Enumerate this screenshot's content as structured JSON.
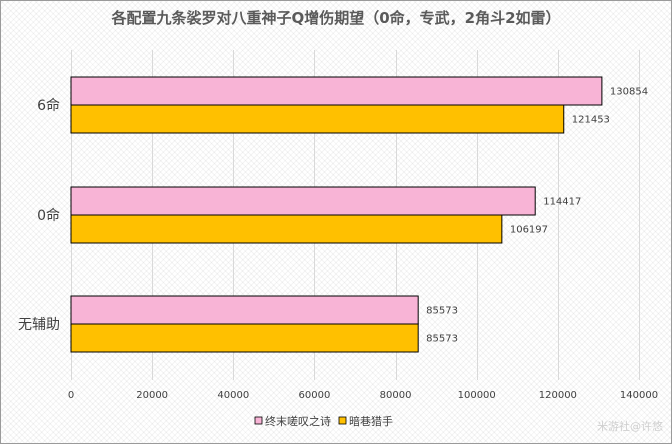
{
  "chart_data": {
    "type": "bar",
    "orientation": "horizontal",
    "title": "各配置九条裟罗对八重神子Q增伤期望（0命，专武，2角斗2如雷）",
    "categories": [
      "6命",
      "0命",
      "无辅助"
    ],
    "series": [
      {
        "name": "终末嗟叹之诗",
        "color": "#f8b4d6",
        "values": [
          130854,
          114417,
          85573
        ]
      },
      {
        "name": "暗巷猎手",
        "color": "#ffc000",
        "values": [
          121453,
          106197,
          85573
        ]
      }
    ],
    "xlim": [
      0,
      140000
    ],
    "xticks": [
      0,
      20000,
      40000,
      60000,
      80000,
      100000,
      120000,
      140000
    ],
    "grid": true,
    "legend": "bottom",
    "xlabel": "",
    "ylabel": ""
  },
  "watermark": "米游社@许悠"
}
